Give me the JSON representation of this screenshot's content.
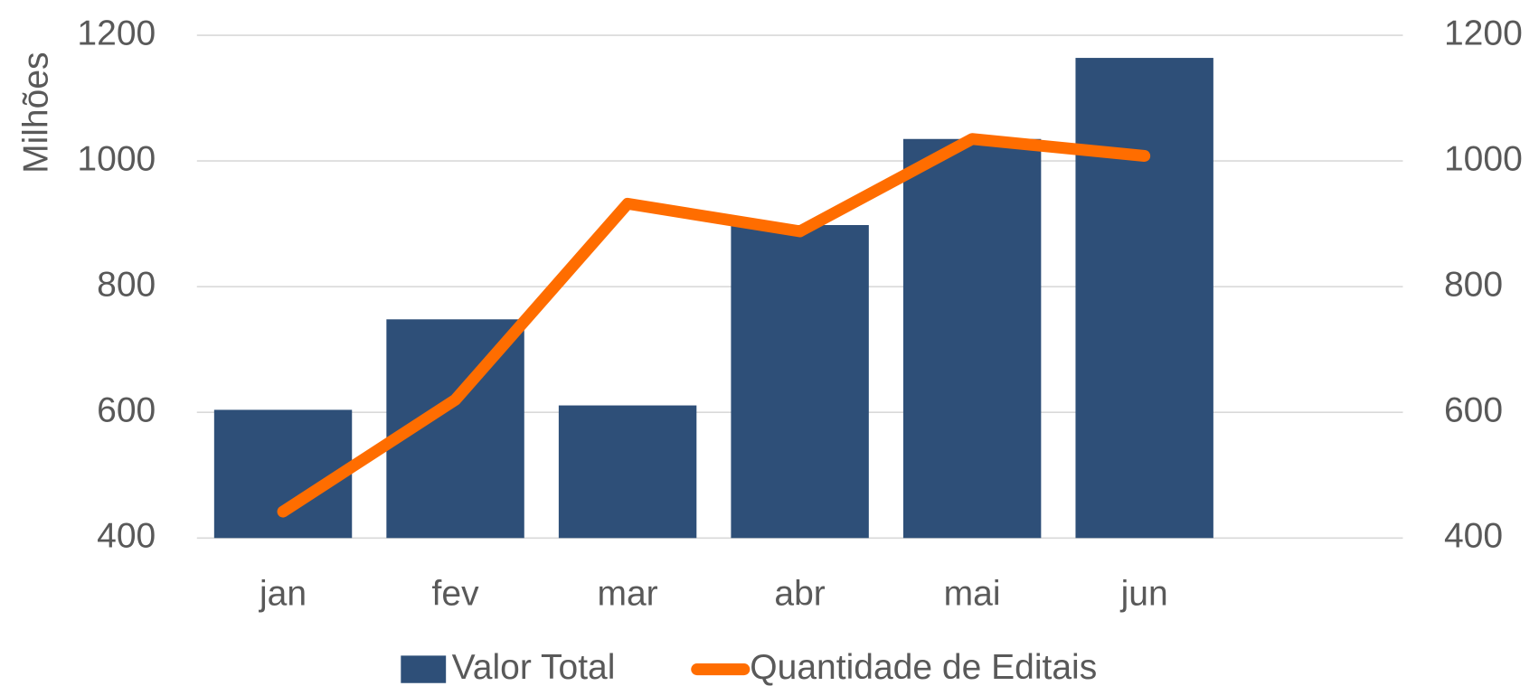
{
  "chart_data": {
    "type": "bar_line",
    "y_label": "Milhões",
    "categories": [
      "jan",
      "fev",
      "mar",
      "abr",
      "mai",
      "jun",
      null
    ],
    "series": [
      {
        "name": "Valor Total",
        "type": "bar",
        "color": "#2e4f78",
        "values": [
          604,
          748,
          611,
          898,
          1035,
          1164,
          null
        ]
      },
      {
        "name": "Quantidade de Editais",
        "type": "line",
        "axis": "y2",
        "color": "#ff6d00",
        "values": [
          442,
          620,
          932,
          888,
          1035,
          1008,
          null
        ]
      }
    ],
    "ylim": [
      400,
      1200
    ],
    "yticks": [
      400,
      600,
      800,
      1000,
      1200
    ],
    "y2lim": [
      400,
      1200
    ],
    "y2ticks": [
      400,
      600,
      800,
      1000,
      1200
    ],
    "grid": true,
    "legend": "bottom"
  }
}
